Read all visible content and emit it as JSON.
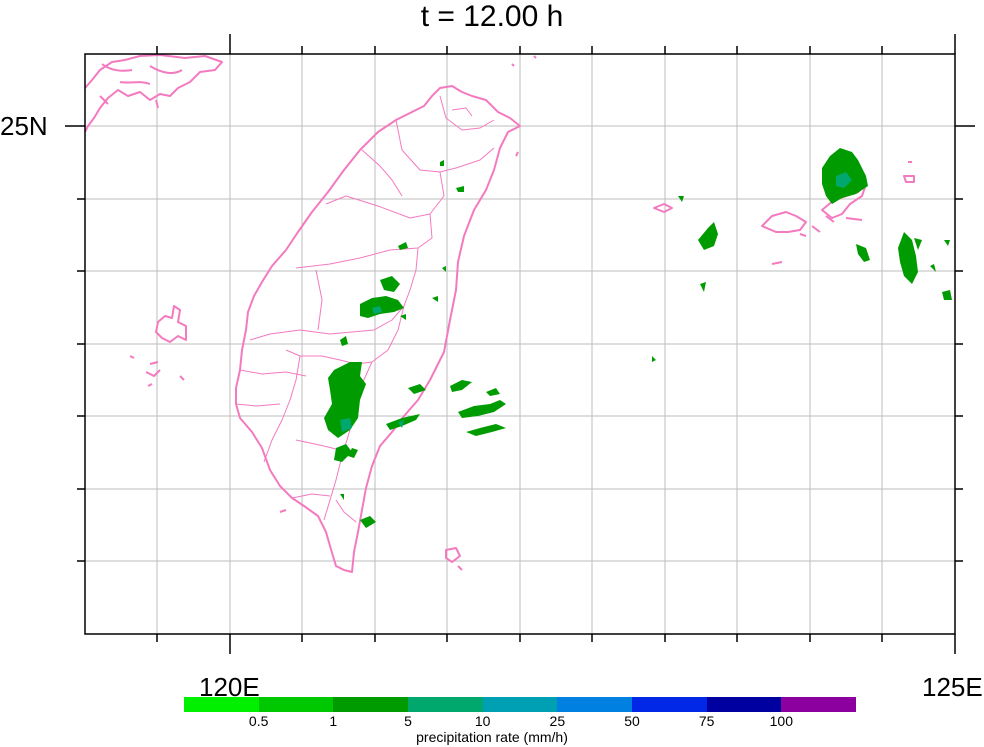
{
  "title": "t = 12.00 h",
  "map": {
    "lon_range": [
      119.0,
      125.0
    ],
    "lat_range": [
      21.5,
      25.5
    ],
    "axis_labels": {
      "lon": [
        "120E",
        "125E"
      ],
      "lat": [
        "25N"
      ]
    },
    "gridlines": true,
    "coastline_color": "#f47ac0",
    "gridline_color": "#bdbdbd"
  },
  "colorbar": {
    "title": "precipitation rate (mm/h)",
    "ticks": [
      "0.5",
      "1",
      "5",
      "10",
      "25",
      "50",
      "75",
      "100"
    ],
    "colors": [
      "#00f000",
      "#00c800",
      "#009b00",
      "#00a86e",
      "#00a0b4",
      "#0080e0",
      "#0028e6",
      "#0000a0",
      "#8c00a0"
    ]
  }
}
